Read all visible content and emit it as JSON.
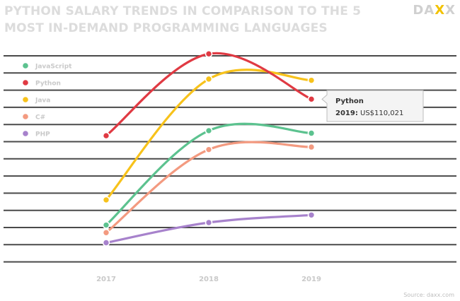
{
  "header": {
    "title": "PYTHON SALARY TRENDS IN COMPARISON TO THE 5 MOST IN-DEMAND PROGRAMMING LANGUAGES",
    "logo_text": "DAXX"
  },
  "footer": {
    "source": "Source: daxx.com"
  },
  "chart_data": {
    "type": "line",
    "title": "PYTHON SALARY TRENDS IN COMPARISON TO THE 5 MOST IN-DEMAND PROGRAMMING LANGUAGES",
    "xlabel": "",
    "ylabel": "",
    "categories": [
      "2017",
      "2018",
      "2019"
    ],
    "y_unit": "US$",
    "grid": true,
    "legend_position": "top-left",
    "series": [
      {
        "name": "JavaScript",
        "color": "#5cc28f",
        "values": [
          60000,
          97500,
          96500
        ]
      },
      {
        "name": "Python",
        "color": "#e03a43",
        "values": [
          95500,
          128000,
          110021
        ]
      },
      {
        "name": "Java",
        "color": "#f7c21b",
        "values": [
          70000,
          118000,
          117500
        ]
      },
      {
        "name": "C#",
        "color": "#f39a80",
        "values": [
          57000,
          90000,
          91000
        ]
      },
      {
        "name": "PHP",
        "color": "#a782cc",
        "values": [
          53000,
          61000,
          64000
        ]
      }
    ],
    "tooltip": {
      "series": "Python",
      "year_label": "2019:",
      "value": "US$110,021"
    }
  }
}
